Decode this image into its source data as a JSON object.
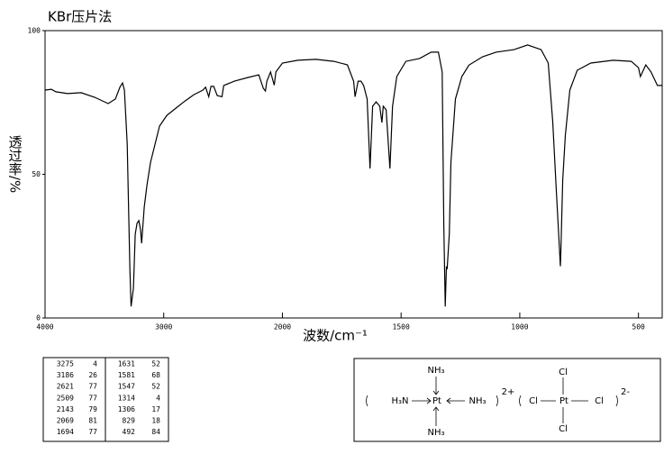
{
  "chart_data": {
    "type": "line",
    "title": "KBr压片法",
    "x_label": "波数/cm⁻¹",
    "y_label": "透过率/%",
    "xlim": [
      4000,
      400
    ],
    "xticks": [
      4000,
      3000,
      2000,
      1500,
      1000,
      500
    ],
    "ylim": [
      0,
      100
    ],
    "yticks": [
      0,
      50,
      100
    ],
    "series": [
      {
        "color": "#000000",
        "x": [
          4000,
          3947,
          3909,
          3810,
          3696,
          3582,
          3468,
          3407,
          3369,
          3347,
          3331,
          3308,
          3285,
          3275,
          3255,
          3240,
          3225,
          3210,
          3195,
          3186,
          3164,
          3141,
          3111,
          3073,
          3035,
          2974,
          2898,
          2822,
          2746,
          2670,
          2647,
          2621,
          2602,
          2579,
          2549,
          2509,
          2495,
          2404,
          2290,
          2199,
          2161,
          2143,
          2131,
          2100,
          2069,
          2055,
          2000,
          1935,
          1859,
          1783,
          1726,
          1700,
          1694,
          1681,
          1669,
          1658,
          1643,
          1631,
          1620,
          1605,
          1590,
          1581,
          1575,
          1563,
          1547,
          1536,
          1518,
          1480,
          1422,
          1373,
          1343,
          1327,
          1320,
          1314,
          1309,
          1306,
          1297,
          1290,
          1271,
          1244,
          1214,
          1157,
          1100,
          1024,
          967,
          910,
          880,
          861,
          846,
          829,
          827,
          819,
          808,
          789,
          758,
          701,
          606,
          530,
          500,
          492,
          469,
          447,
          420,
          400
        ],
        "values": [
          79.3,
          79.6,
          78.7,
          78.1,
          78.4,
          76.8,
          74.6,
          76.2,
          80.3,
          81.8,
          79.3,
          60.5,
          16.6,
          4,
          10.3,
          29.2,
          32.9,
          33.9,
          30.7,
          26,
          38.6,
          46.4,
          54.2,
          60.5,
          66.8,
          70.5,
          73,
          75.5,
          77.7,
          79.3,
          80.3,
          77,
          80.6,
          80.6,
          77.4,
          77,
          80.9,
          82.4,
          83.7,
          84.6,
          79.9,
          79,
          82.4,
          85.6,
          81,
          85.6,
          88.7,
          89.7,
          90,
          89.3,
          88.1,
          82.4,
          77,
          82.4,
          82.4,
          80.9,
          76.2,
          52,
          73.7,
          75.2,
          73.7,
          68,
          73.7,
          72.4,
          52,
          73.7,
          84,
          89.3,
          90.3,
          92.5,
          92.5,
          85.6,
          32.3,
          4,
          18,
          17,
          29.2,
          54.2,
          76.2,
          84,
          88,
          90.9,
          92.5,
          93.4,
          95,
          93.4,
          88.7,
          68.3,
          44.2,
          18,
          22.9,
          48,
          63.6,
          79.3,
          86.2,
          88.7,
          89.7,
          89.3,
          87.1,
          84,
          88.1,
          85.6,
          80.9,
          80.9
        ]
      }
    ]
  },
  "peak_table": {
    "rows": [
      [
        3275,
        4
      ],
      [
        3186,
        26
      ],
      [
        2621,
        77
      ],
      [
        2509,
        77
      ],
      [
        2143,
        79
      ],
      [
        2069,
        81
      ],
      [
        1694,
        77
      ],
      [
        1631,
        52
      ],
      [
        1581,
        68
      ],
      [
        1547,
        52
      ],
      [
        1314,
        4
      ],
      [
        1306,
        17
      ],
      [
        829,
        18
      ],
      [
        492,
        84
      ]
    ]
  },
  "structure": {
    "cation": {
      "metal": "Pt",
      "top": "NH₃",
      "left": "H₃N",
      "right": "NH₃",
      "bottom": "NH₃",
      "charge": "2+"
    },
    "anion": {
      "metal": "Pt",
      "top": "Cl",
      "left": "Cl",
      "right": "Cl",
      "bottom": "Cl",
      "charge": "2-"
    }
  }
}
